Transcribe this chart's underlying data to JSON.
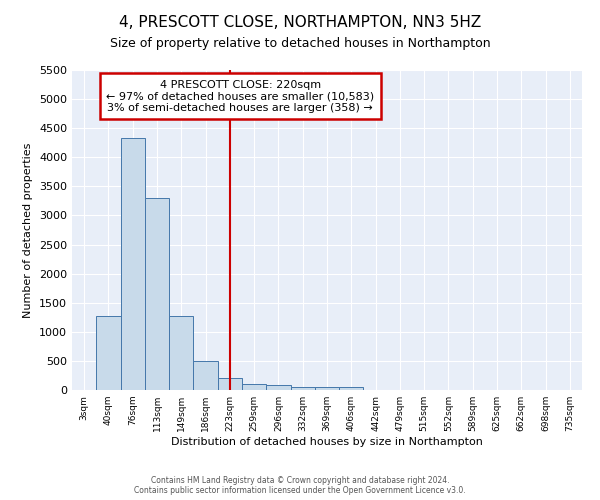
{
  "title": "4, PRESCOTT CLOSE, NORTHAMPTON, NN3 5HZ",
  "subtitle": "Size of property relative to detached houses in Northampton",
  "xlabel": "Distribution of detached houses by size in Northampton",
  "ylabel": "Number of detached properties",
  "bin_labels": [
    "3sqm",
    "40sqm",
    "76sqm",
    "113sqm",
    "149sqm",
    "186sqm",
    "223sqm",
    "259sqm",
    "296sqm",
    "332sqm",
    "369sqm",
    "406sqm",
    "442sqm",
    "479sqm",
    "515sqm",
    "552sqm",
    "589sqm",
    "625sqm",
    "662sqm",
    "698sqm",
    "735sqm"
  ],
  "bar_heights": [
    0,
    1270,
    4330,
    3300,
    1280,
    490,
    210,
    100,
    80,
    60,
    60,
    60,
    0,
    0,
    0,
    0,
    0,
    0,
    0,
    0,
    0
  ],
  "bar_color": "#c8daea",
  "bar_edge_color": "#4477aa",
  "red_line_index": 6,
  "ylim": [
    0,
    5500
  ],
  "yticks": [
    0,
    500,
    1000,
    1500,
    2000,
    2500,
    3000,
    3500,
    4000,
    4500,
    5000,
    5500
  ],
  "annotation_title": "4 PRESCOTT CLOSE: 220sqm",
  "annotation_line1": "← 97% of detached houses are smaller (10,583)",
  "annotation_line2": "3% of semi-detached houses are larger (358) →",
  "annotation_box_color": "#ffffff",
  "annotation_box_edge": "#cc0000",
  "background_color": "#ffffff",
  "plot_bg_color": "#e8eef8",
  "grid_color": "#ffffff",
  "footer_line1": "Contains HM Land Registry data © Crown copyright and database right 2024.",
  "footer_line2": "Contains public sector information licensed under the Open Government Licence v3.0.",
  "title_fontsize": 11,
  "subtitle_fontsize": 9
}
